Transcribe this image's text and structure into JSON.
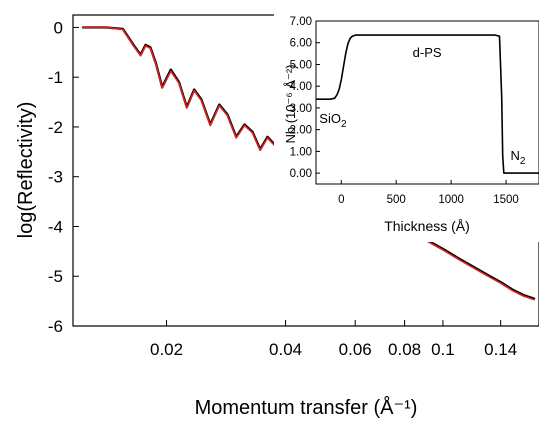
{
  "chart_data": [
    {
      "type": "line",
      "title": "",
      "xlabel": "Momentum transfer (Å⁻¹)",
      "ylabel": "log(Reflectivity)",
      "x_scale": "log",
      "xlim": [
        0.0116,
        0.175
      ],
      "ylim": [
        -6,
        0.25
      ],
      "x_ticks": [
        0.02,
        0.04,
        0.06,
        0.08,
        0.1,
        0.14
      ],
      "x_tick_labels": [
        "0.02",
        "0.04",
        "0.06",
        "0.08",
        "0.1",
        "0.14"
      ],
      "y_ticks": [
        0,
        -1,
        -2,
        -3,
        -4,
        -5,
        -6
      ],
      "y_tick_labels": [
        "0",
        "-1",
        "-2",
        "-3",
        "-4",
        "-5",
        "-6"
      ],
      "grid": false,
      "series": [
        {
          "color": "#000000",
          "x": [
            0.0123,
            0.014,
            0.0155,
            0.0165,
            0.0172,
            0.0177,
            0.0182,
            0.0188,
            0.0195,
            0.0205,
            0.0215,
            0.0225,
            0.0235,
            0.0245,
            0.0258,
            0.0272,
            0.0285,
            0.03,
            0.0315,
            0.033,
            0.0345,
            0.036,
            0.0375,
            0.039,
            0.0405,
            0.042,
            0.0435,
            0.045,
            0.05,
            0.055,
            0.06,
            0.07,
            0.08,
            0.09,
            0.1,
            0.11,
            0.12,
            0.13,
            0.14,
            0.15,
            0.16,
            0.17
          ],
          "y": [
            0.0,
            0.0,
            -0.03,
            -0.35,
            -0.55,
            -0.35,
            -0.4,
            -0.72,
            -1.2,
            -0.85,
            -1.1,
            -1.6,
            -1.25,
            -1.45,
            -1.95,
            -1.55,
            -1.75,
            -2.2,
            -1.95,
            -2.1,
            -2.45,
            -2.2,
            -2.35,
            -2.55,
            -2.5,
            -2.6,
            -2.75,
            -2.7,
            -2.95,
            -3.2,
            -3.4,
            -3.75,
            -4.0,
            -4.25,
            -4.45,
            -4.65,
            -4.82,
            -4.98,
            -5.12,
            -5.27,
            -5.38,
            -5.45
          ]
        },
        {
          "color": "#e02020",
          "x": [
            0.0123,
            0.014,
            0.0155,
            0.0165,
            0.0172,
            0.0177,
            0.0182,
            0.0188,
            0.0195,
            0.0205,
            0.0215,
            0.0225,
            0.0235,
            0.0245,
            0.0258,
            0.0272,
            0.0285,
            0.03,
            0.0315,
            0.033,
            0.0345,
            0.036,
            0.0375,
            0.039,
            0.0405,
            0.042,
            0.0435,
            0.045,
            0.05,
            0.055,
            0.06,
            0.07,
            0.08,
            0.09,
            0.1,
            0.11,
            0.12,
            0.13,
            0.14,
            0.15,
            0.16,
            0.17
          ],
          "y": [
            0.0,
            0.0,
            -0.04,
            -0.37,
            -0.57,
            -0.37,
            -0.42,
            -0.74,
            -1.22,
            -0.88,
            -1.12,
            -1.62,
            -1.27,
            -1.47,
            -1.97,
            -1.57,
            -1.77,
            -2.22,
            -1.97,
            -2.12,
            -2.47,
            -2.22,
            -2.37,
            -2.57,
            -2.52,
            -2.62,
            -2.77,
            -2.72,
            -2.97,
            -3.22,
            -3.42,
            -3.77,
            -4.02,
            -4.27,
            -4.47,
            -4.67,
            -4.84,
            -5.0,
            -5.14,
            -5.29,
            -5.4,
            -5.47
          ]
        }
      ]
    },
    {
      "type": "line",
      "title": "",
      "xlabel": "Thickness (Å)",
      "ylabel": "Nb (10⁻⁶ Å⁻²)",
      "xlim": [
        -230,
        1800
      ],
      "ylim": [
        -0.5,
        7
      ],
      "x_ticks": [
        0,
        500,
        1000,
        1500
      ],
      "x_tick_labels": [
        "0",
        "500",
        "1000",
        "1500"
      ],
      "y_ticks": [
        0,
        1,
        2,
        3,
        4,
        5,
        6,
        7
      ],
      "y_tick_labels": [
        "0.00",
        "1.00",
        "2.00",
        "3.00",
        "4.00",
        "5.00",
        "6.00",
        "7.00"
      ],
      "grid": false,
      "annotations": [
        {
          "text": "d-PS",
          "x": 650,
          "y": 5.35
        },
        {
          "text": "SiO",
          "subscript": "2",
          "x": -200,
          "y": 2.3
        },
        {
          "text": "N",
          "subscript": "2",
          "x": 1540,
          "y": 0.6
        }
      ],
      "series": [
        {
          "color": "#000000",
          "x": [
            -230,
            -100,
            -60,
            -40,
            -20,
            0,
            20,
            40,
            60,
            80,
            100,
            130,
            160,
            200,
            600,
            1000,
            1400,
            1440,
            1460,
            1470,
            1480,
            1800
          ],
          "y": [
            3.4,
            3.4,
            3.45,
            3.6,
            3.85,
            4.3,
            4.9,
            5.5,
            5.95,
            6.2,
            6.3,
            6.35,
            6.35,
            6.35,
            6.35,
            6.35,
            6.35,
            6.3,
            3.5,
            0.8,
            0.0,
            0.0
          ]
        }
      ]
    }
  ]
}
